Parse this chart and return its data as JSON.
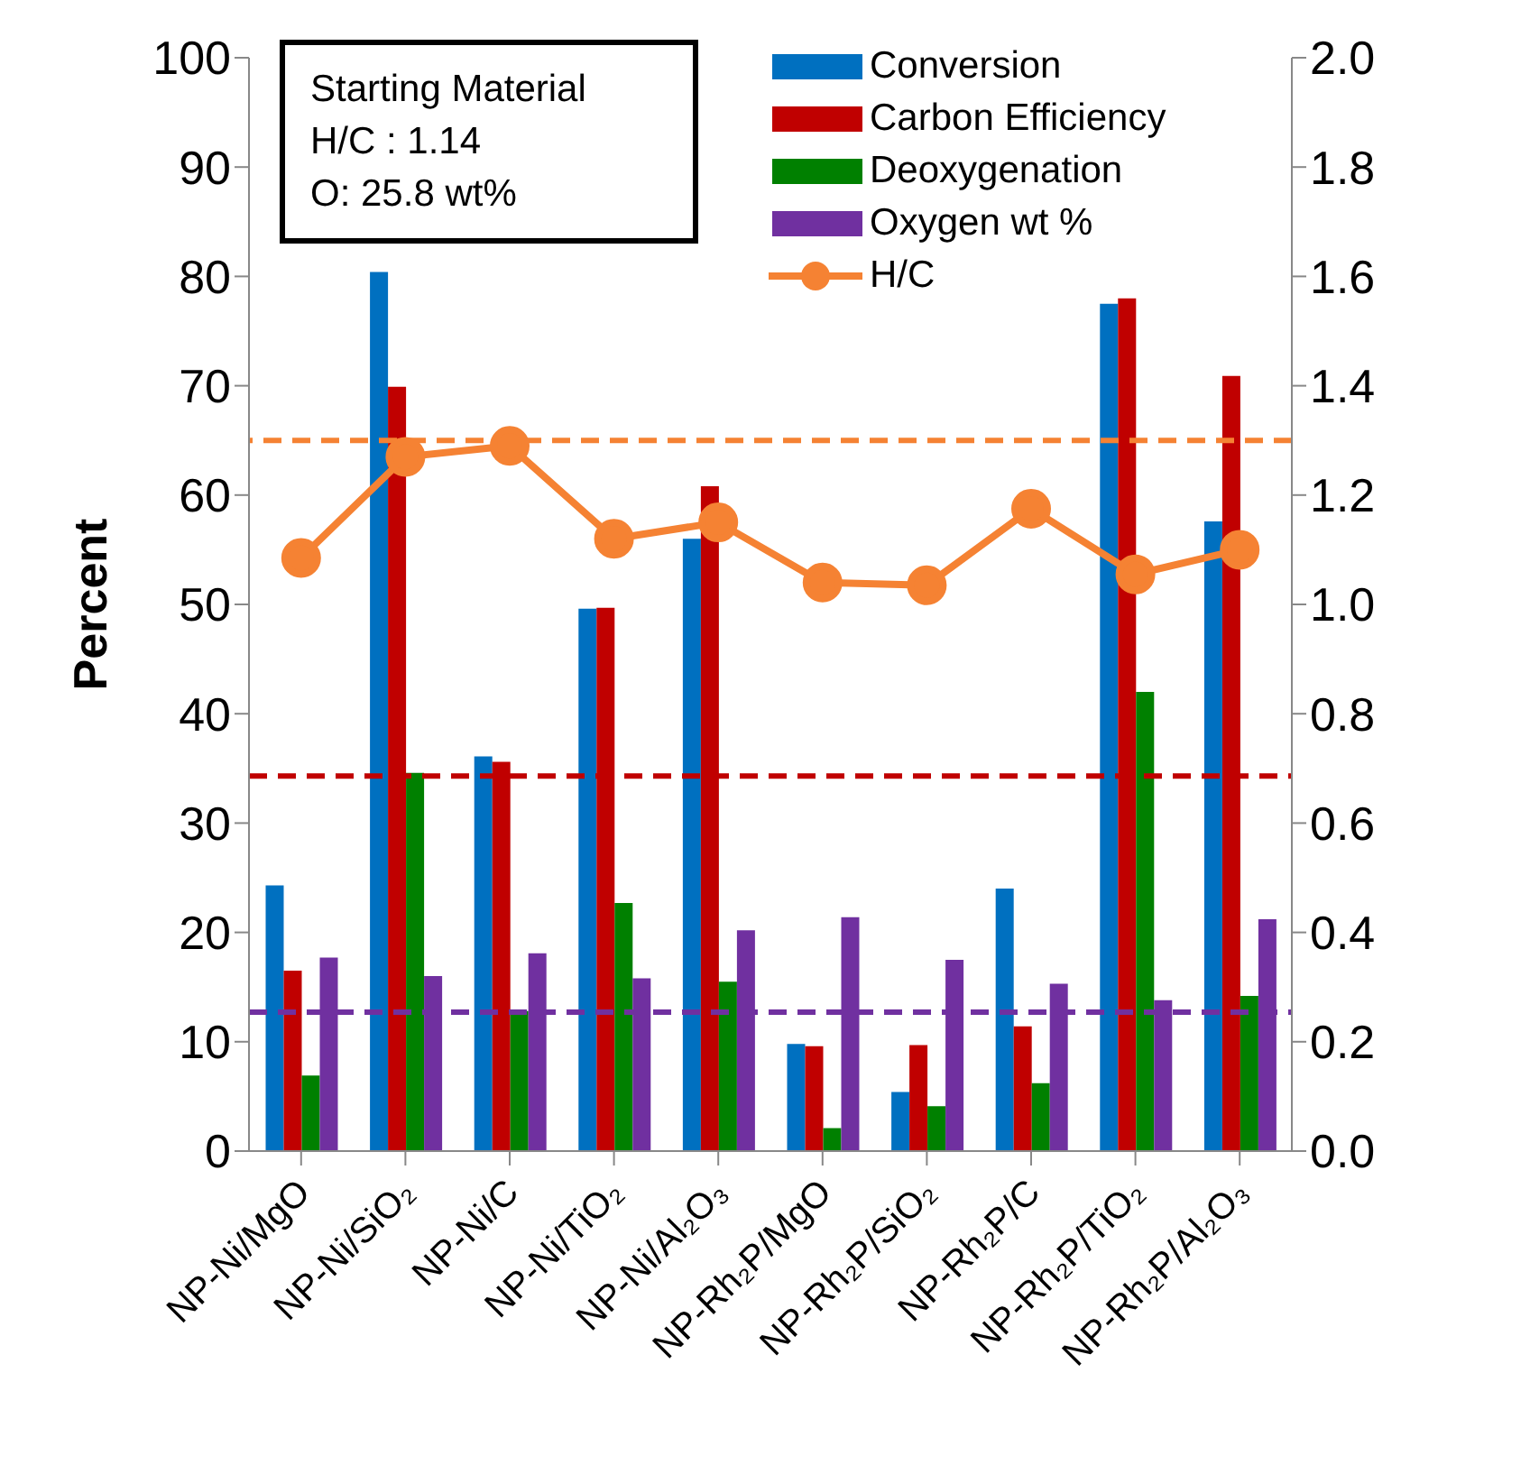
{
  "chart_data": {
    "type": "bar",
    "ylabel": "Percent",
    "categories": [
      "NP-Ni/MgO",
      "NP-Ni/SiO₂",
      "NP-Ni/C",
      "NP-Ni/TiO₂",
      "NP-Ni/Al₂O₃",
      "NP-Rh₂P/MgO",
      "NP-Rh₂P/SiO₂",
      "NP-Rh₂P/C",
      "NP-Rh₂P/TiO₂",
      "NP-Rh₂P/Al₂O₃"
    ],
    "series": [
      {
        "name": "Conversion",
        "color": "#0070c0",
        "values": [
          24.3,
          80.4,
          36.1,
          49.6,
          56.0,
          9.8,
          5.4,
          24.0,
          77.5,
          57.6
        ]
      },
      {
        "name": "Carbon Efficiency",
        "color": "#c00000",
        "values": [
          16.5,
          69.9,
          35.6,
          49.7,
          60.8,
          9.6,
          9.7,
          11.4,
          78.0,
          70.9
        ]
      },
      {
        "name": "Deoxygenation",
        "color": "#008000",
        "values": [
          6.9,
          34.6,
          12.8,
          22.7,
          15.5,
          2.1,
          4.1,
          6.2,
          42.0,
          14.2
        ]
      },
      {
        "name": "Oxygen wt %",
        "color": "#7030a0",
        "values": [
          17.7,
          16.0,
          18.1,
          15.8,
          20.2,
          21.4,
          17.5,
          15.3,
          13.8,
          21.2
        ]
      },
      {
        "name": "H/C",
        "type": "line",
        "axis": "y2",
        "color": "#f58233",
        "marker": "circle",
        "line_style": "solid",
        "values": [
          1.085,
          1.27,
          1.29,
          1.12,
          1.15,
          1.04,
          1.035,
          1.175,
          1.055,
          1.1
        ]
      }
    ],
    "ylim": [
      0,
      100
    ],
    "yticks": [
      0,
      10,
      20,
      30,
      40,
      50,
      60,
      70,
      80,
      90,
      100
    ],
    "y2lim": [
      0,
      2
    ],
    "y2ticks": [
      {
        "value": 0,
        "label": "0.0"
      },
      {
        "value": 0.2,
        "label": "0.2"
      },
      {
        "value": 0.4,
        "label": "0.4"
      },
      {
        "value": 0.6,
        "label": "0.6"
      },
      {
        "value": 0.8,
        "label": "0.8"
      },
      {
        "value": 1,
        "label": "1.0"
      },
      {
        "value": 1.2,
        "label": "1.2"
      },
      {
        "value": 1.4,
        "label": "1.4"
      },
      {
        "value": 1.6,
        "label": "1.6"
      },
      {
        "value": 1.8,
        "label": "1.8"
      },
      {
        "value": 2,
        "label": "2.0"
      }
    ],
    "ref_lines": [
      {
        "axis": "y2",
        "value": 1.3,
        "color": "#f58233",
        "line_style": "dashed"
      },
      {
        "axis": "y",
        "value": 34.3,
        "color": "#c00000",
        "line_style": "dashed"
      },
      {
        "axis": "y",
        "value": 12.7,
        "color": "#7030a0",
        "line_style": "dashed"
      }
    ],
    "annotations": [
      "Starting Material",
      "H/C : 1.14",
      "O: 25.8 wt%"
    ],
    "legend": "top right",
    "grid": false
  }
}
